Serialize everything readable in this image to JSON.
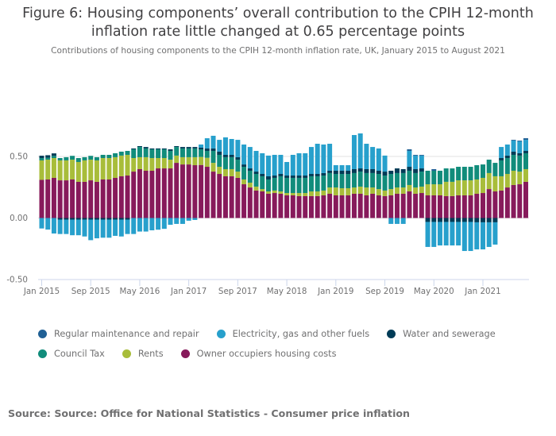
{
  "header": {
    "title_line1": "Figure 6: Housing components’ overall contribution to the CPIH 12-month",
    "title_line2": "inflation rate little changed at 0.65 percentage points",
    "subtitle": "Contributions of housing components to the CPIH 12-month inflation rate, UK, January 2015 to August 2021"
  },
  "footer": {
    "source": "Source: Source: Office for National Statistics - Consumer price inflation"
  },
  "chart_data": {
    "type": "bar",
    "stacked": true,
    "title": "Figure 6: Housing components’ overall contribution to the CPIH 12-month inflation rate little changed at 0.65 percentage points",
    "subtitle": "Contributions of housing components to the CPIH 12-month inflation rate, UK, January 2015 to August 2021",
    "xlabel": "",
    "ylabel": "",
    "ylim": [
      -0.5,
      0.7
    ],
    "yticks": [
      -0.5,
      0.0,
      0.5
    ],
    "ytick_labels": [
      "-0.50",
      "0.00",
      "0.50"
    ],
    "xtick_labels": [
      "Jan 2015",
      "Sep 2015",
      "May 2016",
      "Jan 2017",
      "Sep 2017",
      "May 2018",
      "Jan 2019",
      "Sep 2019",
      "May 2020",
      "Jan 2021"
    ],
    "xtick_every": 8,
    "grid": true,
    "legend_position": "bottom",
    "start_month": "2015-01",
    "n_months": 80,
    "series": [
      {
        "name": "Owner occupiers housing costs",
        "color": "#871a5b",
        "values": [
          0.31,
          0.313,
          0.326,
          0.306,
          0.306,
          0.313,
          0.294,
          0.294,
          0.306,
          0.294,
          0.313,
          0.313,
          0.326,
          0.339,
          0.345,
          0.377,
          0.397,
          0.384,
          0.384,
          0.403,
          0.403,
          0.403,
          0.448,
          0.435,
          0.435,
          0.429,
          0.431,
          0.416,
          0.377,
          0.358,
          0.339,
          0.339,
          0.326,
          0.274,
          0.248,
          0.223,
          0.216,
          0.197,
          0.203,
          0.197,
          0.184,
          0.184,
          0.178,
          0.178,
          0.178,
          0.178,
          0.184,
          0.197,
          0.184,
          0.184,
          0.184,
          0.197,
          0.197,
          0.184,
          0.197,
          0.184,
          0.178,
          0.184,
          0.197,
          0.197,
          0.216,
          0.197,
          0.203,
          0.184,
          0.184,
          0.184,
          0.178,
          0.178,
          0.184,
          0.184,
          0.184,
          0.197,
          0.203,
          0.235,
          0.216,
          0.223,
          0.248,
          0.268,
          0.274,
          0.294
        ]
      },
      {
        "name": "Rents",
        "color": "#a8bd3a",
        "values": [
          0.158,
          0.161,
          0.161,
          0.162,
          0.162,
          0.161,
          0.161,
          0.174,
          0.168,
          0.174,
          0.174,
          0.174,
          0.168,
          0.168,
          0.168,
          0.11,
          0.097,
          0.11,
          0.103,
          0.084,
          0.084,
          0.071,
          0.059,
          0.059,
          0.059,
          0.065,
          0.065,
          0.073,
          0.071,
          0.058,
          0.058,
          0.058,
          0.051,
          0.039,
          0.039,
          0.032,
          0.019,
          0.019,
          0.02,
          0.019,
          0.019,
          0.019,
          0.025,
          0.025,
          0.038,
          0.038,
          0.039,
          0.051,
          0.064,
          0.058,
          0.058,
          0.051,
          0.058,
          0.064,
          0.051,
          0.051,
          0.045,
          0.051,
          0.051,
          0.051,
          0.052,
          0.051,
          0.052,
          0.09,
          0.09,
          0.09,
          0.116,
          0.116,
          0.122,
          0.122,
          0.122,
          0.116,
          0.123,
          0.13,
          0.123,
          0.116,
          0.11,
          0.116,
          0.103,
          0.103
        ]
      },
      {
        "name": "Council Tax",
        "color": "#118c7b",
        "values": [
          0.019,
          0.016,
          0.018,
          0.019,
          0.026,
          0.031,
          0.032,
          0.026,
          0.031,
          0.026,
          0.026,
          0.026,
          0.032,
          0.032,
          0.032,
          0.071,
          0.083,
          0.071,
          0.071,
          0.071,
          0.071,
          0.071,
          0.07,
          0.071,
          0.071,
          0.071,
          0.062,
          0.056,
          0.097,
          0.097,
          0.097,
          0.097,
          0.097,
          0.103,
          0.097,
          0.103,
          0.104,
          0.097,
          0.103,
          0.123,
          0.123,
          0.123,
          0.123,
          0.123,
          0.123,
          0.123,
          0.122,
          0.117,
          0.11,
          0.116,
          0.116,
          0.117,
          0.122,
          0.117,
          0.117,
          0.123,
          0.122,
          0.123,
          0.117,
          0.117,
          0.116,
          0.117,
          0.122,
          0.11,
          0.11,
          0.11,
          0.109,
          0.109,
          0.11,
          0.11,
          0.11,
          0.116,
          0.109,
          0.109,
          0.109,
          0.129,
          0.129,
          0.129,
          0.13,
          0.129
        ]
      },
      {
        "name": "Water and sewerage",
        "color": "#003c57",
        "values": [
          0.019,
          0.02,
          0.02,
          -0.013,
          -0.013,
          -0.013,
          -0.013,
          -0.013,
          -0.013,
          -0.013,
          -0.013,
          -0.013,
          -0.013,
          -0.013,
          -0.013,
          0.007,
          0.007,
          0.012,
          0.007,
          0.007,
          0.007,
          0.013,
          0.007,
          0.012,
          0.012,
          0.012,
          0.013,
          0.02,
          0.02,
          0.026,
          0.019,
          0.019,
          0.02,
          0.019,
          0.019,
          0.019,
          0.019,
          0.026,
          0.019,
          0.019,
          0.019,
          0.019,
          0.019,
          0.019,
          0.019,
          0.019,
          0.02,
          0.019,
          0.026,
          0.026,
          0.026,
          0.032,
          0.026,
          0.032,
          0.032,
          0.026,
          0.032,
          0.026,
          0.038,
          0.032,
          0.032,
          0.032,
          0.026,
          -0.032,
          -0.032,
          -0.032,
          -0.032,
          -0.032,
          -0.032,
          -0.032,
          -0.032,
          -0.035,
          -0.035,
          -0.035,
          -0.035,
          0.019,
          0.02,
          0.026,
          0.019,
          0.019
        ]
      },
      {
        "name": "Electricity, gas and other fuels",
        "color": "#27a0cc",
        "values": [
          -0.085,
          -0.094,
          -0.126,
          -0.117,
          -0.117,
          -0.127,
          -0.127,
          -0.137,
          -0.167,
          -0.152,
          -0.147,
          -0.147,
          -0.132,
          -0.137,
          -0.117,
          -0.13,
          -0.11,
          -0.11,
          -0.1,
          -0.095,
          -0.088,
          -0.055,
          -0.048,
          -0.048,
          -0.022,
          -0.016,
          0.026,
          0.083,
          0.103,
          0.096,
          0.142,
          0.129,
          0.141,
          0.162,
          0.174,
          0.168,
          0.168,
          0.168,
          0.168,
          0.155,
          0.11,
          0.168,
          0.181,
          0.181,
          0.219,
          0.245,
          0.232,
          0.219,
          0.045,
          0.045,
          0.045,
          0.277,
          0.284,
          0.206,
          0.18,
          0.181,
          0.13,
          -0.048,
          -0.048,
          -0.048,
          0.129,
          0.11,
          0.104,
          -0.203,
          -0.203,
          -0.191,
          -0.191,
          -0.191,
          -0.191,
          -0.236,
          -0.236,
          -0.22,
          -0.22,
          -0.2,
          -0.181,
          0.09,
          0.09,
          0.09,
          0.097,
          0.09
        ]
      },
      {
        "name": "Regular maintenance and repair",
        "color": "#206095",
        "values": [
          0,
          0,
          0,
          0,
          0,
          0,
          0,
          0,
          0,
          0,
          0,
          0,
          0,
          0,
          0,
          0,
          0,
          0,
          0,
          0,
          0,
          0,
          0,
          0,
          0,
          0,
          0,
          0,
          0,
          0,
          0,
          0,
          0,
          0,
          0,
          0,
          0,
          0,
          0,
          0,
          0,
          0,
          0,
          0,
          0,
          0,
          0,
          0,
          0,
          0,
          0,
          0,
          0,
          0,
          0,
          0,
          0,
          0,
          0,
          0,
          0.013,
          0.006,
          0.006,
          0,
          0.013,
          0,
          0,
          0,
          0,
          0,
          0,
          0,
          0,
          0,
          0,
          0,
          0,
          0.006,
          0.006,
          0.013
        ]
      }
    ]
  },
  "legend": {
    "rows": [
      [
        {
          "label": "Regular maintenance and repair",
          "color": "#206095"
        },
        {
          "label": "Electricity, gas and other fuels",
          "color": "#27a0cc"
        },
        {
          "label": "Water and sewerage",
          "color": "#003c57"
        }
      ],
      [
        {
          "label": "Council Tax",
          "color": "#118c7b"
        },
        {
          "label": "Rents",
          "color": "#a8bd3a"
        },
        {
          "label": "Owner occupiers housing costs",
          "color": "#871a5b"
        }
      ]
    ]
  }
}
